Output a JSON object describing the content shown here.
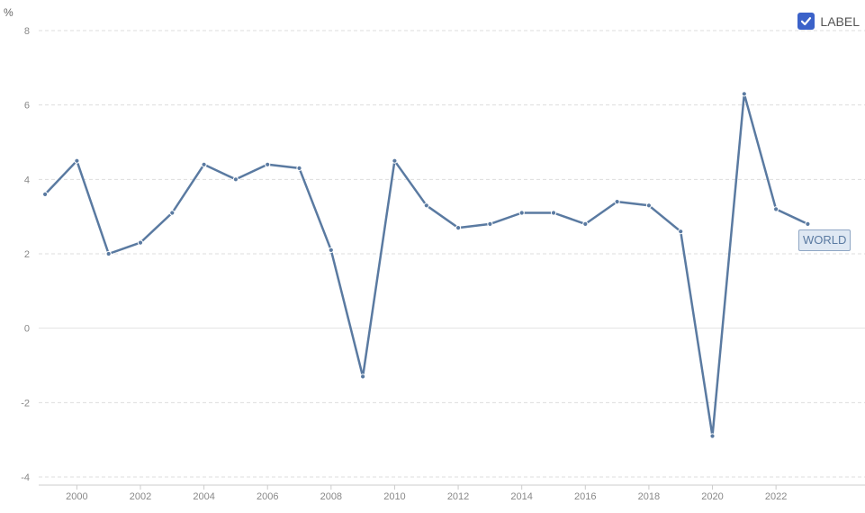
{
  "chart_data": {
    "type": "line",
    "unit": "%",
    "ylim": [
      -4,
      8
    ],
    "yticks": [
      -4,
      -2,
      0,
      2,
      4,
      6,
      8
    ],
    "xlim": [
      1998.8,
      2024.8
    ],
    "xticks": [
      2000,
      2002,
      2004,
      2006,
      2008,
      2010,
      2012,
      2014,
      2016,
      2018,
      2020,
      2022
    ],
    "grid": true,
    "legend_position": "top-right",
    "series": [
      {
        "name": "WORLD",
        "color": "#5a7aa1",
        "x": [
          1999,
          2000,
          2001,
          2002,
          2003,
          2004,
          2005,
          2006,
          2007,
          2008,
          2009,
          2010,
          2011,
          2012,
          2013,
          2014,
          2015,
          2016,
          2017,
          2018,
          2019,
          2020,
          2021,
          2022,
          2023
        ],
        "values": [
          3.6,
          4.5,
          2.0,
          2.3,
          3.1,
          4.4,
          4.0,
          4.4,
          4.3,
          2.1,
          -1.3,
          4.5,
          3.3,
          2.7,
          2.8,
          3.1,
          3.1,
          2.8,
          3.4,
          3.3,
          2.6,
          -2.9,
          6.3,
          3.2,
          2.8
        ]
      }
    ]
  },
  "legend": {
    "label": "LABEL",
    "checked": true,
    "checkbox_color": "#3b62c9"
  },
  "series_tag": {
    "text": "WORLD",
    "color": "#5a7aa1"
  }
}
